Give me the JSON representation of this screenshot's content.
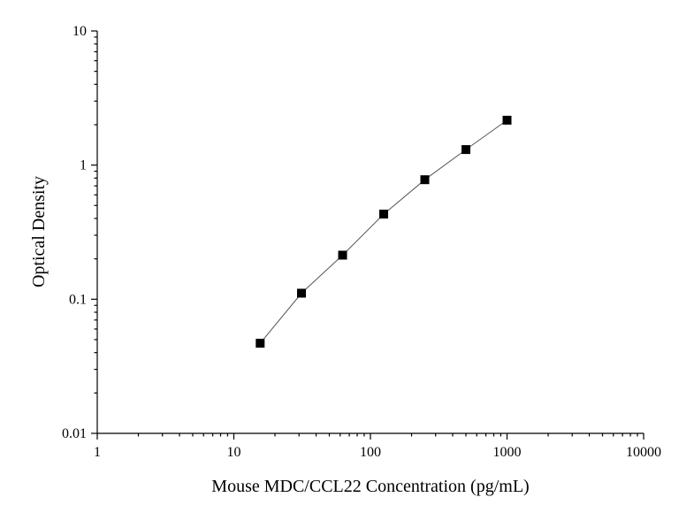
{
  "chart_data": {
    "type": "scatter",
    "title": "",
    "xlabel": "Mouse MDC/CCL22 Concentration (pg/mL)",
    "ylabel": "Optical Density",
    "xscale": "log",
    "yscale": "log",
    "xlim": [
      1,
      10000
    ],
    "ylim": [
      0.01,
      10
    ],
    "xticks": [
      1,
      10,
      100,
      1000,
      10000
    ],
    "xtick_labels": [
      "1",
      "10",
      "100",
      "1000",
      "10000"
    ],
    "yticks": [
      0.01,
      0.1,
      1,
      10
    ],
    "ytick_labels": [
      "0.01",
      "0.1",
      "1",
      "10"
    ],
    "grid": false,
    "legend": "none",
    "marker": "square",
    "marker_color": "#000000",
    "line_color": "#555555",
    "series": [
      {
        "x": [
          15.6,
          31.25,
          62.5,
          125,
          250,
          500,
          1000
        ],
        "y": [
          0.047,
          0.111,
          0.213,
          0.431,
          0.778,
          1.305,
          2.16
        ]
      }
    ]
  }
}
